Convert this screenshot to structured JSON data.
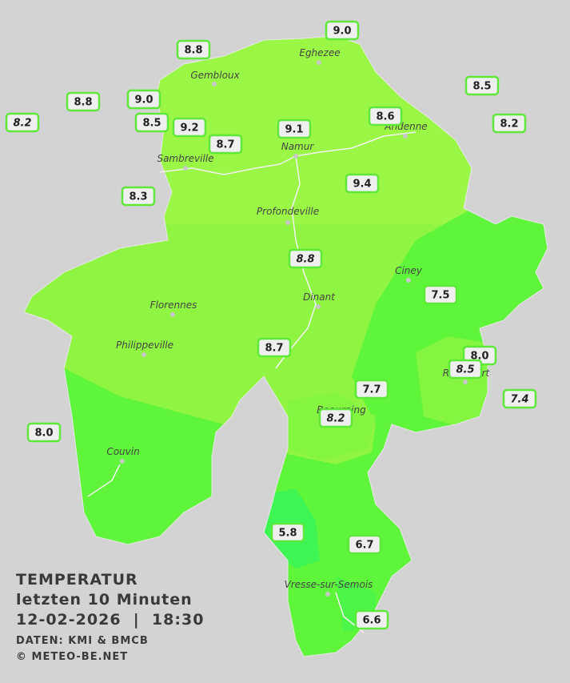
{
  "title": {
    "line1": "TEMPERATUR",
    "line2": "letzten 10 Minuten",
    "line3": "12-02-2026  |  18:30",
    "source": "DATEN: KMI & BMCB",
    "copyright": "© METEO-BE.NET"
  },
  "cities": [
    "Eghezee",
    "Gembloux",
    "Andenne",
    "Namur",
    "Sambreville",
    "Profondeville",
    "Ciney",
    "Dinant",
    "Florennes",
    "Philippeville",
    "Rochefort",
    "Beauraing",
    "Couvin",
    "Vresse-sur-Semois"
  ],
  "stations": [
    {
      "value": "9.0"
    },
    {
      "value": "8.8"
    },
    {
      "value": "8.5"
    },
    {
      "value": "8.8"
    },
    {
      "value": "9.0"
    },
    {
      "value": "8.2"
    },
    {
      "value": "8.5"
    },
    {
      "value": "9.2"
    },
    {
      "value": "8.6"
    },
    {
      "value": "8.2"
    },
    {
      "value": "9.1"
    },
    {
      "value": "8.7"
    },
    {
      "value": "9.4"
    },
    {
      "value": "8.3"
    },
    {
      "value": "8.8"
    },
    {
      "value": "7.5"
    },
    {
      "value": "8.7"
    },
    {
      "value": "8.0"
    },
    {
      "value": "8.5"
    },
    {
      "value": "7.7"
    },
    {
      "value": "7.4"
    },
    {
      "value": "8.2"
    },
    {
      "value": "8.0"
    },
    {
      "value": "5.8"
    },
    {
      "value": "6.7"
    },
    {
      "value": "6.6"
    }
  ]
}
